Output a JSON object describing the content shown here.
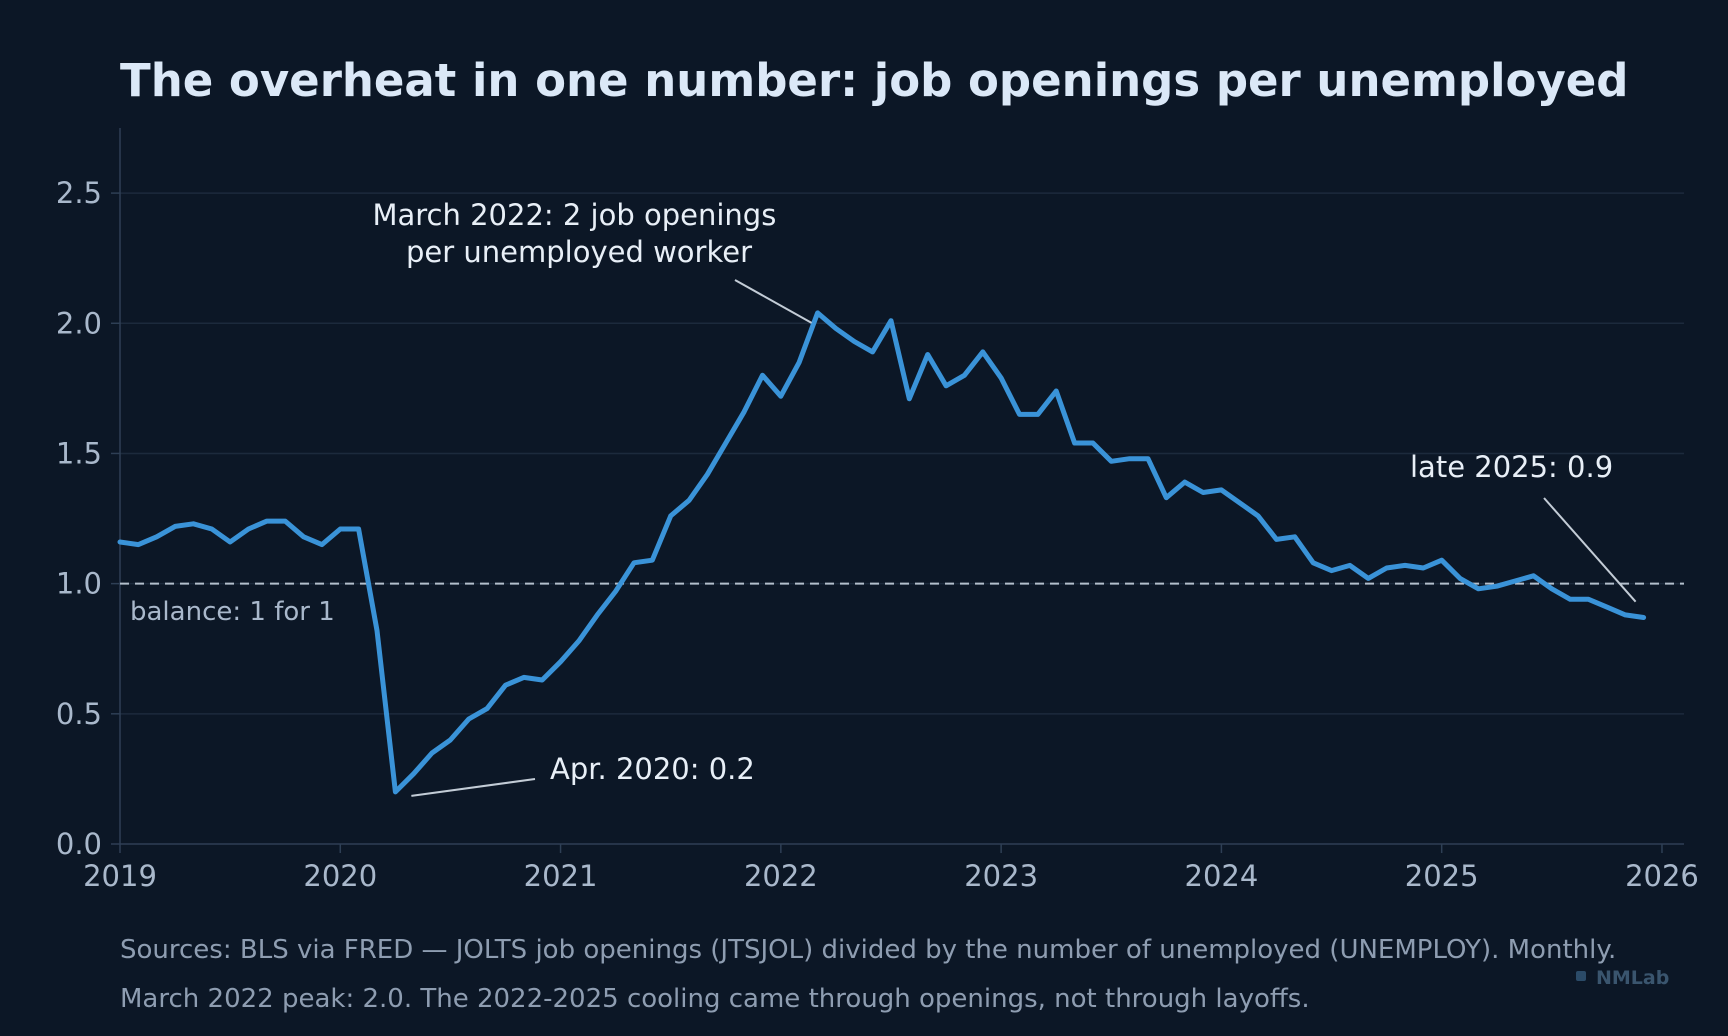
{
  "colors": {
    "background": "#0c1726",
    "line": "#3a93d8",
    "grid": "#1c2a3c",
    "axis": "#2e3f55",
    "reference": "#b3bfcc",
    "text": "#a9b8cb",
    "annotation_leader": "#c3ccd6"
  },
  "chart_data": {
    "type": "line",
    "title": "The overheat in one number: job openings per unemployed",
    "xlabel": "",
    "ylabel": "",
    "xlim": [
      2019.0,
      2026.1
    ],
    "ylim": [
      0,
      2.75
    ],
    "x_ticks": [
      2019,
      2020,
      2021,
      2022,
      2023,
      2024,
      2025,
      2026
    ],
    "y_ticks": [
      0.0,
      0.5,
      1.0,
      1.5,
      2.0,
      2.5
    ],
    "y_tick_labels": [
      "0.0",
      "0.5",
      "1.0",
      "1.5",
      "2.0",
      "2.5"
    ],
    "grid": "horizontal",
    "series": [
      {
        "x": [
          "2019-01",
          "2019-02",
          "2019-03",
          "2019-04",
          "2019-05",
          "2019-06",
          "2019-07",
          "2019-08",
          "2019-09",
          "2019-10",
          "2019-11",
          "2019-12",
          "2020-01",
          "2020-02",
          "2020-03",
          "2020-04",
          "2020-05",
          "2020-06",
          "2020-07",
          "2020-08",
          "2020-09",
          "2020-10",
          "2020-11",
          "2020-12",
          "2021-01",
          "2021-02",
          "2021-03",
          "2021-04",
          "2021-05",
          "2021-06",
          "2021-07",
          "2021-08",
          "2021-09",
          "2021-10",
          "2021-11",
          "2021-12",
          "2022-01",
          "2022-02",
          "2022-03",
          "2022-04",
          "2022-05",
          "2022-06",
          "2022-07",
          "2022-08",
          "2022-09",
          "2022-10",
          "2022-11",
          "2022-12",
          "2023-01",
          "2023-02",
          "2023-03",
          "2023-04",
          "2023-05",
          "2023-06",
          "2023-07",
          "2023-08",
          "2023-09",
          "2023-10",
          "2023-11",
          "2023-12",
          "2024-01",
          "2024-02",
          "2024-03",
          "2024-04",
          "2024-05",
          "2024-06",
          "2024-07",
          "2024-08",
          "2024-09",
          "2024-10",
          "2024-11",
          "2024-12",
          "2025-01",
          "2025-02",
          "2025-03",
          "2025-04",
          "2025-05",
          "2025-06",
          "2025-07",
          "2025-08",
          "2025-09",
          "2025-10",
          "2025-11",
          "2025-12"
        ],
        "values": [
          1.16,
          1.15,
          1.18,
          1.22,
          1.23,
          1.21,
          1.16,
          1.21,
          1.24,
          1.24,
          1.18,
          1.15,
          1.21,
          1.21,
          0.82,
          0.2,
          0.27,
          0.35,
          0.4,
          0.48,
          0.52,
          0.61,
          0.64,
          0.63,
          0.7,
          0.78,
          0.88,
          0.97,
          1.08,
          1.09,
          1.26,
          1.32,
          1.42,
          1.54,
          1.66,
          1.8,
          1.72,
          1.85,
          2.04,
          1.98,
          1.93,
          1.89,
          2.01,
          1.71,
          1.88,
          1.76,
          1.8,
          1.89,
          1.79,
          1.65,
          1.65,
          1.74,
          1.54,
          1.54,
          1.47,
          1.48,
          1.48,
          1.33,
          1.39,
          1.35,
          1.36,
          1.31,
          1.26,
          1.17,
          1.18,
          1.08,
          1.05,
          1.07,
          1.02,
          1.06,
          1.07,
          1.06,
          1.09,
          1.02,
          0.98,
          0.99,
          1.01,
          1.03,
          0.98,
          0.94,
          0.94,
          0.91,
          0.88,
          0.87
        ]
      }
    ],
    "reference_line": {
      "y": 1.0,
      "style": "dashed",
      "label": "balance: 1 for 1"
    },
    "annotations": [
      {
        "lines": [
          "March 2022: 2 job openings",
          "per unemployed worker"
        ],
        "point": [
          "2022-03",
          2.04
        ]
      },
      {
        "lines": [
          "Apr. 2020: 0.2"
        ],
        "point": [
          "2020-04",
          0.2
        ]
      },
      {
        "lines": [
          "late 2025: 0.9"
        ],
        "point": [
          "2025-12",
          0.9
        ]
      }
    ]
  },
  "footer": {
    "line1": "Sources: BLS via FRED — JOLTS job openings (JTSJOL) divided by the number of unemployed (UNEMPLOY). Monthly.",
    "line2": "March 2022 peak: 2.0. The 2022-2025 cooling came through openings, not through layoffs."
  },
  "brand": {
    "name": "NMLab"
  }
}
